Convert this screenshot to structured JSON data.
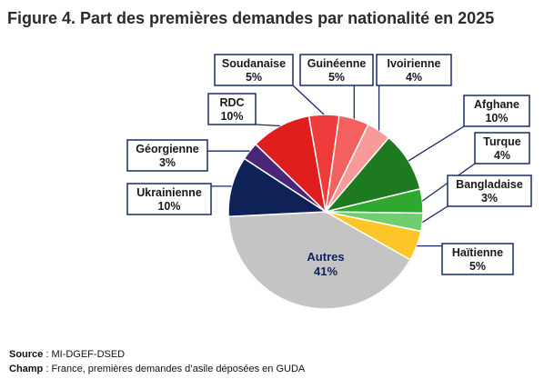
{
  "title": "Figure 4. Part des premières demandes par nationalité en 2025",
  "footer": {
    "source_label": "Source",
    "source_text": " : MI-DGEF-DSED",
    "champ_label": "Champ",
    "champ_text": " : France, premières demandes d’asile déposées en GUDA"
  },
  "chart_data": {
    "type": "pie",
    "title": "Figure 4. Part des premières demandes par nationalité en 2025",
    "unit": "%",
    "slices": [
      {
        "label": "Soudanaise",
        "value": 5,
        "color": "#ee3b3b"
      },
      {
        "label": "Guinéenne",
        "value": 5,
        "color": "#f26060"
      },
      {
        "label": "Ivoirienne",
        "value": 4,
        "color": "#f79a9a"
      },
      {
        "label": "Afghane",
        "value": 10,
        "color": "#1e7a1e"
      },
      {
        "label": "Turque",
        "value": 4,
        "color": "#2ea82e"
      },
      {
        "label": "Bangladaise",
        "value": 3,
        "color": "#6fcf6f"
      },
      {
        "label": "Haïtienne",
        "value": 5,
        "color": "#ffc629"
      },
      {
        "label": "Autres",
        "value": 41,
        "color": "#c4c4c4"
      },
      {
        "label": "Ukrainienne",
        "value": 10,
        "color": "#0e2258"
      },
      {
        "label": "Géorgienne",
        "value": 3,
        "color": "#4b2678"
      },
      {
        "label": "RDC",
        "value": 10,
        "color": "#e01e1e"
      }
    ]
  }
}
